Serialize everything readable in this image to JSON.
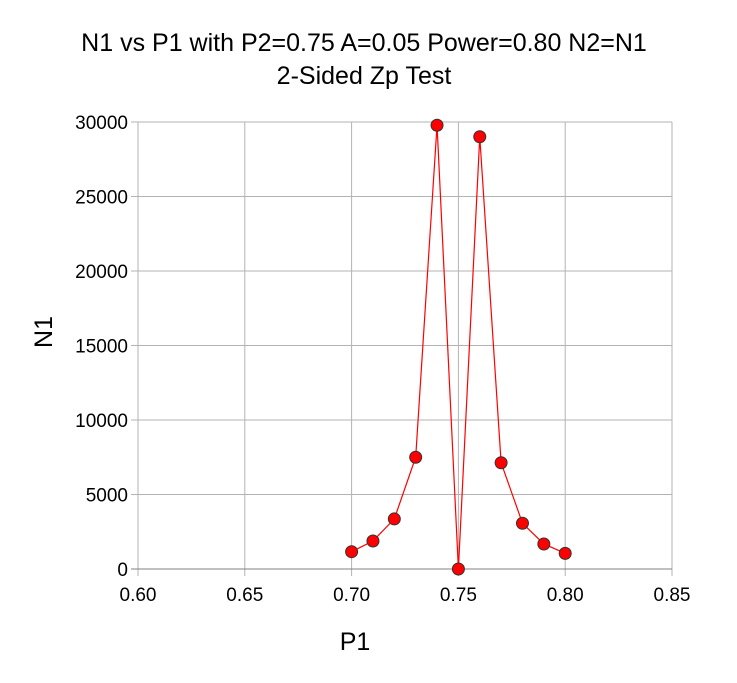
{
  "chart_data": {
    "type": "line",
    "title": "N1 vs P1 with P2=0.75 A=0.05 Power=0.80 N2=N1",
    "subtitle": "2-Sided Zp Test",
    "xlabel": "P1",
    "ylabel": "N1",
    "xlim": [
      0.6,
      0.85
    ],
    "ylim": [
      0,
      30000
    ],
    "xticks": [
      "0.60",
      "0.65",
      "0.70",
      "0.75",
      "0.80",
      "0.85"
    ],
    "yticks": [
      "0",
      "5000",
      "10000",
      "15000",
      "20000",
      "25000",
      "30000"
    ],
    "grid": true,
    "series": [
      {
        "name": "N1",
        "color": "#ff0000",
        "marker_color": "#ff0000",
        "x": [
          0.7,
          0.71,
          0.72,
          0.73,
          0.74,
          0.75,
          0.76,
          0.77,
          0.78,
          0.79,
          0.8
        ],
        "y": [
          1160,
          1880,
          3360,
          7500,
          29780,
          0,
          29010,
          7130,
          3070,
          1680,
          1050
        ]
      }
    ]
  }
}
